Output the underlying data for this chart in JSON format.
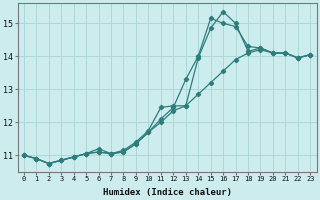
{
  "xlabel": "Humidex (Indice chaleur)",
  "ylabel": "",
  "bg_color": "#cdeced",
  "grid_color": "#aed8d8",
  "line_color": "#2e7d7d",
  "xlim": [
    -0.5,
    23.5
  ],
  "ylim": [
    10.5,
    15.6
  ],
  "xticks": [
    0,
    1,
    2,
    3,
    4,
    5,
    6,
    7,
    8,
    9,
    10,
    11,
    12,
    13,
    14,
    15,
    16,
    17,
    18,
    19,
    20,
    21,
    22,
    23
  ],
  "yticks": [
    11,
    12,
    13,
    14,
    15
  ],
  "line1_x": [
    0,
    1,
    2,
    3,
    4,
    5,
    6,
    7,
    8,
    9,
    10,
    11,
    12,
    13,
    14,
    15,
    16,
    17,
    18,
    19,
    20,
    21,
    22,
    23
  ],
  "line1_y": [
    11.0,
    10.9,
    10.75,
    10.85,
    10.95,
    11.05,
    11.1,
    11.05,
    11.1,
    11.35,
    11.7,
    12.0,
    12.35,
    12.5,
    12.85,
    13.2,
    13.55,
    13.9,
    14.1,
    14.2,
    14.1,
    14.1,
    13.95,
    14.05
  ],
  "line2_x": [
    0,
    1,
    2,
    3,
    4,
    5,
    6,
    7,
    8,
    9,
    10,
    11,
    12,
    13,
    14,
    15,
    16,
    17,
    18,
    19,
    20,
    21,
    22,
    23
  ],
  "line2_y": [
    11.0,
    10.9,
    10.75,
    10.85,
    10.95,
    11.05,
    11.1,
    11.05,
    11.1,
    11.35,
    11.7,
    12.1,
    12.45,
    13.3,
    14.0,
    15.15,
    15.0,
    14.9,
    14.3,
    14.25,
    14.1,
    14.1,
    13.95,
    14.05
  ],
  "line3_x": [
    0,
    1,
    2,
    3,
    4,
    5,
    6,
    7,
    8,
    9,
    10,
    11,
    12,
    13,
    14,
    15,
    16,
    17,
    18,
    19,
    20,
    21,
    22,
    23
  ],
  "line3_y": [
    11.0,
    10.9,
    10.75,
    10.85,
    10.95,
    11.05,
    11.2,
    11.05,
    11.15,
    11.4,
    11.75,
    12.45,
    12.5,
    12.5,
    13.95,
    14.85,
    15.35,
    15.0,
    14.15,
    14.25,
    14.1,
    14.1,
    13.95,
    14.05
  ]
}
